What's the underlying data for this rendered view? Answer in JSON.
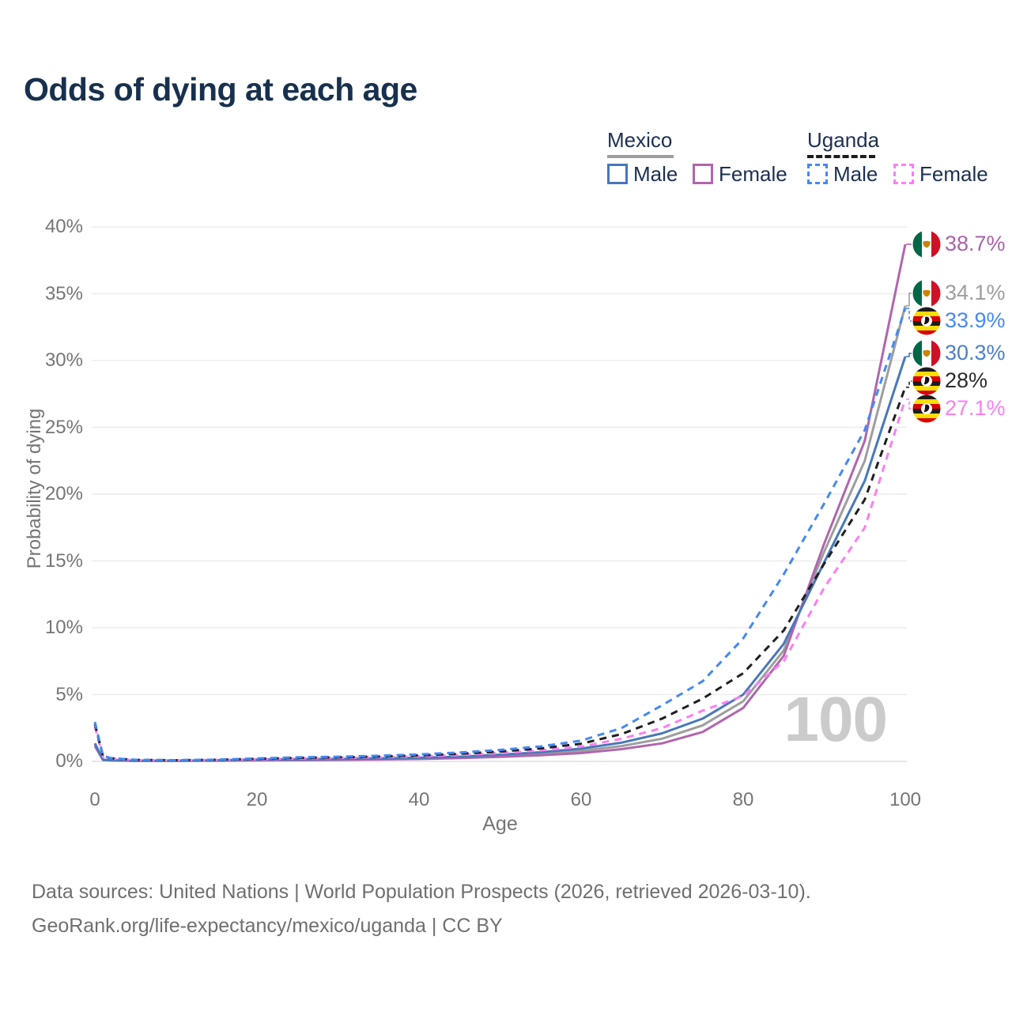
{
  "title": "Odds of dying at each age",
  "legend": {
    "groups": [
      {
        "country": "Mexico",
        "underline_style": "solid",
        "underline_color": "#9e9e9e",
        "items": [
          {
            "label": "Male",
            "swatch_color": "#4878b9",
            "swatch_style": "solid"
          },
          {
            "label": "Female",
            "swatch_color": "#b066ad",
            "swatch_style": "solid"
          }
        ]
      },
      {
        "country": "Uganda",
        "underline_style": "dashed",
        "underline_color": "#1c1c1c",
        "items": [
          {
            "label": "Male",
            "swatch_color": "#4489f4",
            "swatch_style": "dashed"
          },
          {
            "label": "Female",
            "swatch_color": "#fb7ef4",
            "swatch_style": "dashed"
          }
        ]
      }
    ]
  },
  "axes": {
    "x_title": "Age",
    "y_title": "Probability of dying",
    "x_ticks": [
      {
        "value": 0,
        "label": "0"
      },
      {
        "value": 20,
        "label": "20"
      },
      {
        "value": 40,
        "label": "40"
      },
      {
        "value": 60,
        "label": "60"
      },
      {
        "value": 80,
        "label": "80"
      },
      {
        "value": 100,
        "label": "100"
      }
    ],
    "y_ticks": [
      {
        "value": 0,
        "label": "0%"
      },
      {
        "value": 5,
        "label": "5%"
      },
      {
        "value": 10,
        "label": "10%"
      },
      {
        "value": 15,
        "label": "15%"
      },
      {
        "value": 20,
        "label": "20%"
      },
      {
        "value": 25,
        "label": "25%"
      },
      {
        "value": 30,
        "label": "30%"
      },
      {
        "value": 35,
        "label": "35%"
      },
      {
        "value": 40,
        "label": "40%"
      }
    ]
  },
  "watermark": "100",
  "footer": {
    "line1": "Data sources: United Nations | World Population Prospects (2026, retrieved 2026-03-10).",
    "line2": "GeoRank.org/life-expectancy/mexico/uganda | CC BY"
  },
  "chart_data": {
    "type": "line",
    "title": "Odds of dying at each age",
    "xlabel": "Age",
    "ylabel": "Probability of dying",
    "xlim": [
      0,
      100
    ],
    "ylim": [
      0,
      40
    ],
    "y_unit": "%",
    "grid": "horizontal",
    "legend_position": "top-right",
    "x": [
      0,
      1,
      2,
      5,
      10,
      15,
      20,
      25,
      30,
      35,
      40,
      45,
      50,
      55,
      60,
      65,
      70,
      75,
      80,
      85,
      90,
      95,
      100
    ],
    "series": [
      {
        "name": "Mexico both sexes",
        "country": "Mexico",
        "sex": "both",
        "color": "#9e9e9e",
        "dash": "solid",
        "flag": "mexico",
        "end_label": "34.1%",
        "label_color": "#9e9e9e",
        "values": [
          1.25,
          0.11,
          0.08,
          0.05,
          0.05,
          0.07,
          0.1,
          0.12,
          0.14,
          0.18,
          0.22,
          0.29,
          0.42,
          0.57,
          0.78,
          1.15,
          1.7,
          2.7,
          4.5,
          8.3,
          15.7,
          22.5,
          34.1
        ]
      },
      {
        "name": "Mexico female",
        "country": "Mexico",
        "sex": "female",
        "color": "#b066ad",
        "dash": "solid",
        "flag": "mexico",
        "end_label": "38.7%",
        "label_color": "#aa63ab",
        "values": [
          1.15,
          0.1,
          0.07,
          0.04,
          0.04,
          0.05,
          0.07,
          0.09,
          0.11,
          0.14,
          0.18,
          0.24,
          0.34,
          0.46,
          0.62,
          0.92,
          1.35,
          2.2,
          4.0,
          7.9,
          16.3,
          24.0,
          38.7
        ]
      },
      {
        "name": "Mexico male",
        "country": "Mexico",
        "sex": "male",
        "color": "#4878b9",
        "dash": "solid",
        "flag": "mexico",
        "end_label": "30.3%",
        "label_color": "#4c7ecb",
        "values": [
          1.35,
          0.12,
          0.08,
          0.05,
          0.05,
          0.08,
          0.13,
          0.16,
          0.18,
          0.22,
          0.27,
          0.35,
          0.5,
          0.68,
          0.95,
          1.4,
          2.1,
          3.2,
          5.0,
          8.8,
          14.9,
          21.0,
          30.3
        ]
      },
      {
        "name": "Uganda female",
        "country": "Uganda",
        "sex": "female",
        "color": "#fb7ef4",
        "dash": "dashed",
        "flag": "uganda",
        "end_label": "27.1%",
        "label_color": "#fb7ef4",
        "values": [
          2.6,
          0.34,
          0.21,
          0.1,
          0.08,
          0.11,
          0.16,
          0.22,
          0.26,
          0.31,
          0.38,
          0.48,
          0.62,
          0.82,
          1.1,
          1.7,
          2.5,
          3.8,
          4.9,
          7.5,
          13.0,
          17.5,
          27.1
        ]
      },
      {
        "name": "Uganda both sexes",
        "country": "Uganda",
        "sex": "both",
        "color": "#1f1f1f",
        "dash": "dashed",
        "flag": "uganda",
        "end_label": "28%",
        "label_color": "#2b2b2b",
        "values": [
          2.8,
          0.37,
          0.23,
          0.11,
          0.09,
          0.12,
          0.19,
          0.26,
          0.3,
          0.36,
          0.45,
          0.57,
          0.74,
          0.97,
          1.32,
          2.05,
          3.2,
          4.7,
          6.6,
          9.8,
          14.8,
          19.6,
          28.0
        ]
      },
      {
        "name": "Uganda male",
        "country": "Uganda",
        "sex": "male",
        "color": "#4489f4",
        "dash": "dashed",
        "flag": "uganda",
        "end_label": "33.9%",
        "label_color": "#4489f4",
        "values": [
          2.95,
          0.4,
          0.25,
          0.12,
          0.09,
          0.13,
          0.22,
          0.3,
          0.35,
          0.42,
          0.52,
          0.66,
          0.86,
          1.12,
          1.55,
          2.5,
          4.2,
          6.0,
          9.2,
          14.0,
          19.3,
          24.8,
          33.9
        ]
      }
    ]
  }
}
